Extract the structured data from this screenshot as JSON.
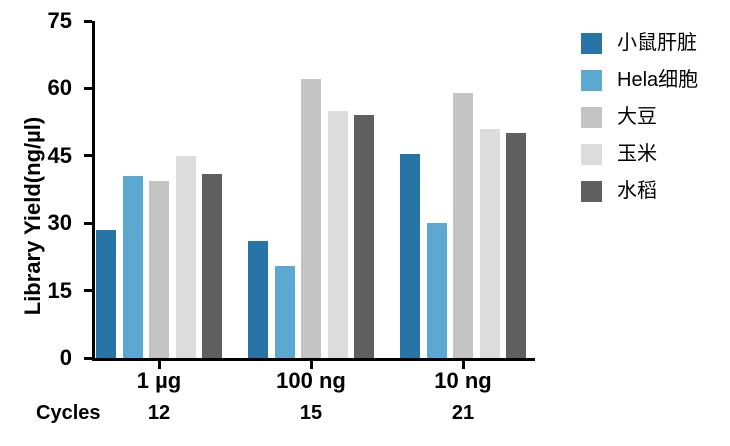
{
  "chart_data": {
    "type": "bar",
    "title": "",
    "ylabel": "Library Yield(ng/µl)",
    "xlabel": "",
    "ylim": [
      0,
      75
    ],
    "yticks": [
      0,
      15,
      30,
      45,
      60,
      75
    ],
    "categories": [
      "1 µg",
      "100 ng",
      "10 ng"
    ],
    "cycles_label": "Cycles",
    "cycles": [
      "12",
      "15",
      "21"
    ],
    "grid": false,
    "legend_position": "right",
    "axis_color": "#000000",
    "series": [
      {
        "name": "小鼠肝脏",
        "color": "#2874A6",
        "values": [
          28.5,
          26,
          45.5
        ]
      },
      {
        "name": "Hela细胞",
        "color": "#5BA8D0",
        "values": [
          40.5,
          20.5,
          30
        ]
      },
      {
        "name": "大豆",
        "color": "#C4C4C4",
        "values": [
          39.5,
          62,
          59
        ]
      },
      {
        "name": "玉米",
        "color": "#DCDCDC",
        "values": [
          45,
          55,
          51
        ]
      },
      {
        "name": "水稻",
        "color": "#5F5F5F",
        "values": [
          41,
          54,
          50
        ]
      }
    ]
  }
}
